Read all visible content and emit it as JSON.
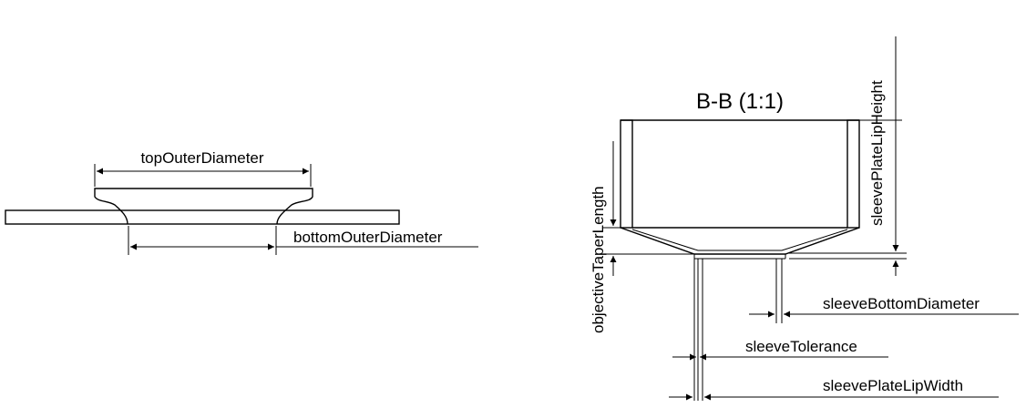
{
  "diagram": {
    "view_title": "B-B (1:1)",
    "labels": {
      "top_outer_diameter": "topOuterDiameter",
      "bottom_outer_diameter": "bottomOuterDiameter",
      "sleeve_plate_lip_height": "sleevePlateLipHeight",
      "objective_taper_length": "objectiveTaperLength",
      "sleeve_bottom_diameter": "sleeveBottomDiameter",
      "sleeve_tolerance": "sleeveTolerance",
      "sleeve_plate_lip_width": "sleevePlateLipWidth"
    }
  }
}
